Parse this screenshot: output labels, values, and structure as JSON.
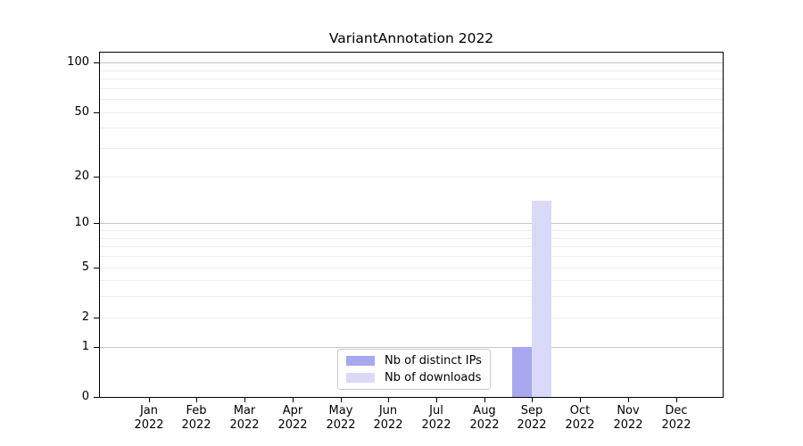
{
  "header": {
    "title": "VariantAnnotation 2022"
  },
  "legend": {
    "items": [
      {
        "label": "Nb of distinct IPs",
        "color": "#a8a8f0"
      },
      {
        "label": "Nb of downloads",
        "color": "#dadaf8"
      }
    ]
  },
  "chart_data": {
    "type": "bar",
    "title": "VariantAnnotation 2022",
    "categories": [
      "Jan",
      "Feb",
      "Mar",
      "Apr",
      "May",
      "Jun",
      "Jul",
      "Aug",
      "Sep",
      "Oct",
      "Nov",
      "Dec"
    ],
    "category_year": "2022",
    "series": [
      {
        "name": "Nb of distinct IPs",
        "color": "#a8a8f0",
        "values": [
          0,
          0,
          0,
          0,
          0,
          0,
          0,
          0,
          1,
          0,
          0,
          0
        ]
      },
      {
        "name": "Nb of downloads",
        "color": "#dadaf8",
        "values": [
          0,
          0,
          0,
          0,
          0,
          0,
          0,
          0,
          14,
          0,
          0,
          0
        ]
      }
    ],
    "xlabel": "",
    "ylabel": "",
    "yscale": "log1p",
    "ylim": [
      0,
      115
    ],
    "yticks": [
      0,
      1,
      2,
      5,
      10,
      20,
      50,
      100
    ],
    "grid": true,
    "grid_major": [
      1,
      10,
      100
    ],
    "grid_minor": [
      2,
      3,
      4,
      5,
      6,
      7,
      8,
      9,
      20,
      30,
      40,
      50,
      60,
      70,
      80,
      90
    ],
    "legend_position": "lower center",
    "colors": {
      "grid_major": "#c7c7c7",
      "grid_minor": "#ededed",
      "axis": "#000000",
      "background": "#ffffff"
    }
  }
}
